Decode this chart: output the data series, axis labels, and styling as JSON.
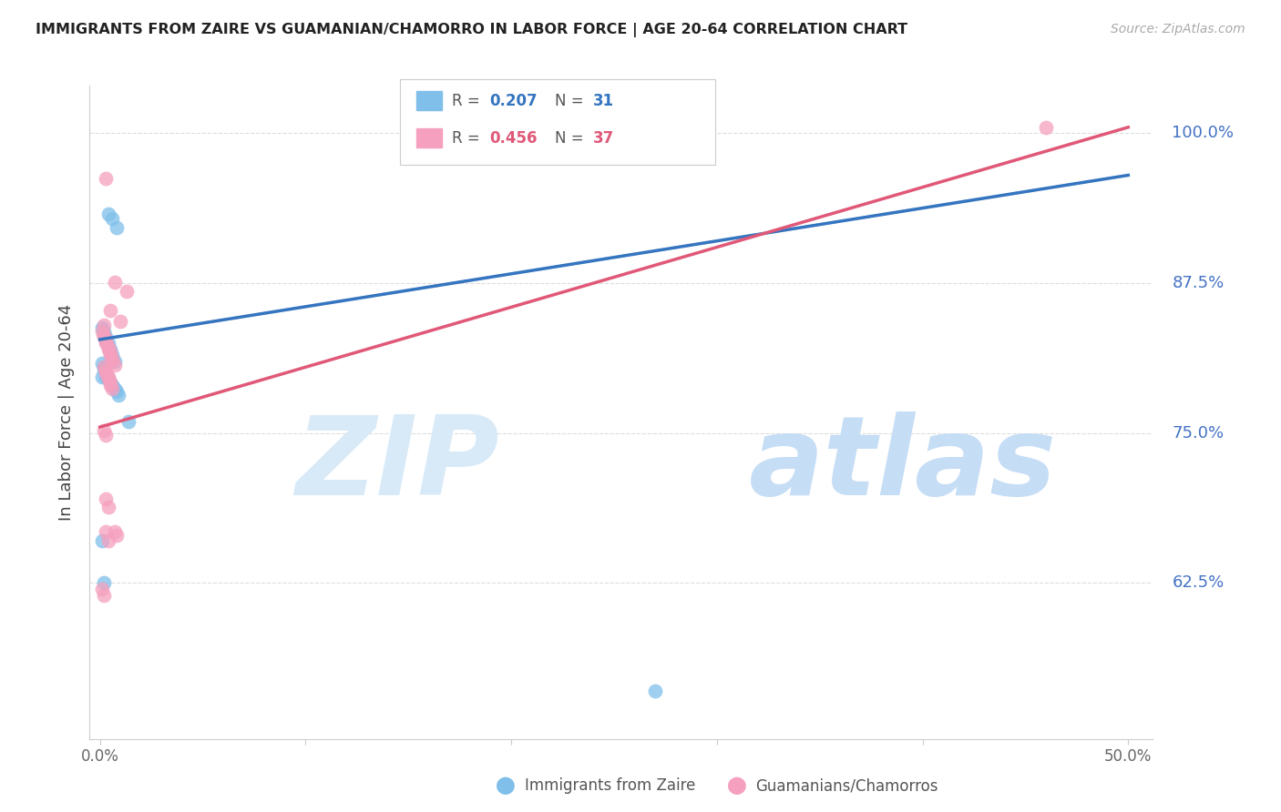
{
  "title": "IMMIGRANTS FROM ZAIRE VS GUAMANIAN/CHAMORRO IN LABOR FORCE | AGE 20-64 CORRELATION CHART",
  "source": "Source: ZipAtlas.com",
  "ylabel": "In Labor Force | Age 20-64",
  "ytick_values": [
    0.625,
    0.75,
    0.875,
    1.0
  ],
  "ytick_labels": [
    "62.5%",
    "75.0%",
    "87.5%",
    "100.0%"
  ],
  "xmin": 0.0,
  "xmax": 0.5,
  "ymin": 0.495,
  "ymax": 1.04,
  "blue_R": "0.207",
  "blue_N": "31",
  "pink_R": "0.456",
  "pink_N": "37",
  "blue_label": "Immigrants from Zaire",
  "pink_label": "Guamanians/Chamorros",
  "blue_scatter_color": "#7fbfea",
  "pink_scatter_color": "#f5a0be",
  "blue_line_color": "#3575c0",
  "pink_line_color": "#e05878",
  "blue_dashed_color": "#a0c8e8",
  "grid_color": "#dddddd",
  "spine_color": "#cccccc",
  "ytick_label_color": "#4472c4",
  "title_color": "#222222",
  "source_color": "#aaaaaa",
  "blue_line_x0": 0.0,
  "blue_line_y0": 0.828,
  "blue_line_x1": 0.5,
  "blue_line_y1": 0.965,
  "pink_line_x0": 0.0,
  "pink_line_y0": 0.755,
  "pink_line_x1": 0.5,
  "pink_line_y1": 1.005,
  "blue_x": [
    0.004,
    0.006,
    0.008,
    0.001,
    0.002,
    0.002,
    0.003,
    0.003,
    0.004,
    0.004,
    0.005,
    0.005,
    0.006,
    0.006,
    0.007,
    0.001,
    0.002,
    0.002,
    0.003,
    0.003,
    0.004,
    0.005,
    0.006,
    0.007,
    0.008,
    0.009,
    0.001,
    0.002,
    0.014,
    0.27,
    0.001
  ],
  "blue_y": [
    0.933,
    0.929,
    0.921,
    0.838,
    0.835,
    0.832,
    0.83,
    0.827,
    0.825,
    0.822,
    0.82,
    0.818,
    0.815,
    0.812,
    0.81,
    0.808,
    0.805,
    0.803,
    0.8,
    0.797,
    0.795,
    0.792,
    0.79,
    0.787,
    0.785,
    0.782,
    0.66,
    0.625,
    0.76,
    0.535,
    0.797
  ],
  "pink_x": [
    0.003,
    0.007,
    0.013,
    0.005,
    0.01,
    0.002,
    0.001,
    0.002,
    0.002,
    0.003,
    0.003,
    0.004,
    0.004,
    0.005,
    0.005,
    0.006,
    0.006,
    0.007,
    0.002,
    0.003,
    0.003,
    0.004,
    0.004,
    0.005,
    0.005,
    0.006,
    0.002,
    0.003,
    0.003,
    0.004,
    0.007,
    0.008,
    0.001,
    0.002,
    0.003,
    0.004,
    0.46
  ],
  "pink_y": [
    0.962,
    0.876,
    0.868,
    0.852,
    0.843,
    0.84,
    0.835,
    0.832,
    0.83,
    0.827,
    0.825,
    0.822,
    0.82,
    0.817,
    0.815,
    0.812,
    0.81,
    0.807,
    0.805,
    0.802,
    0.8,
    0.797,
    0.795,
    0.792,
    0.79,
    0.787,
    0.752,
    0.748,
    0.695,
    0.688,
    0.668,
    0.665,
    0.62,
    0.615,
    0.668,
    0.66,
    1.005
  ]
}
